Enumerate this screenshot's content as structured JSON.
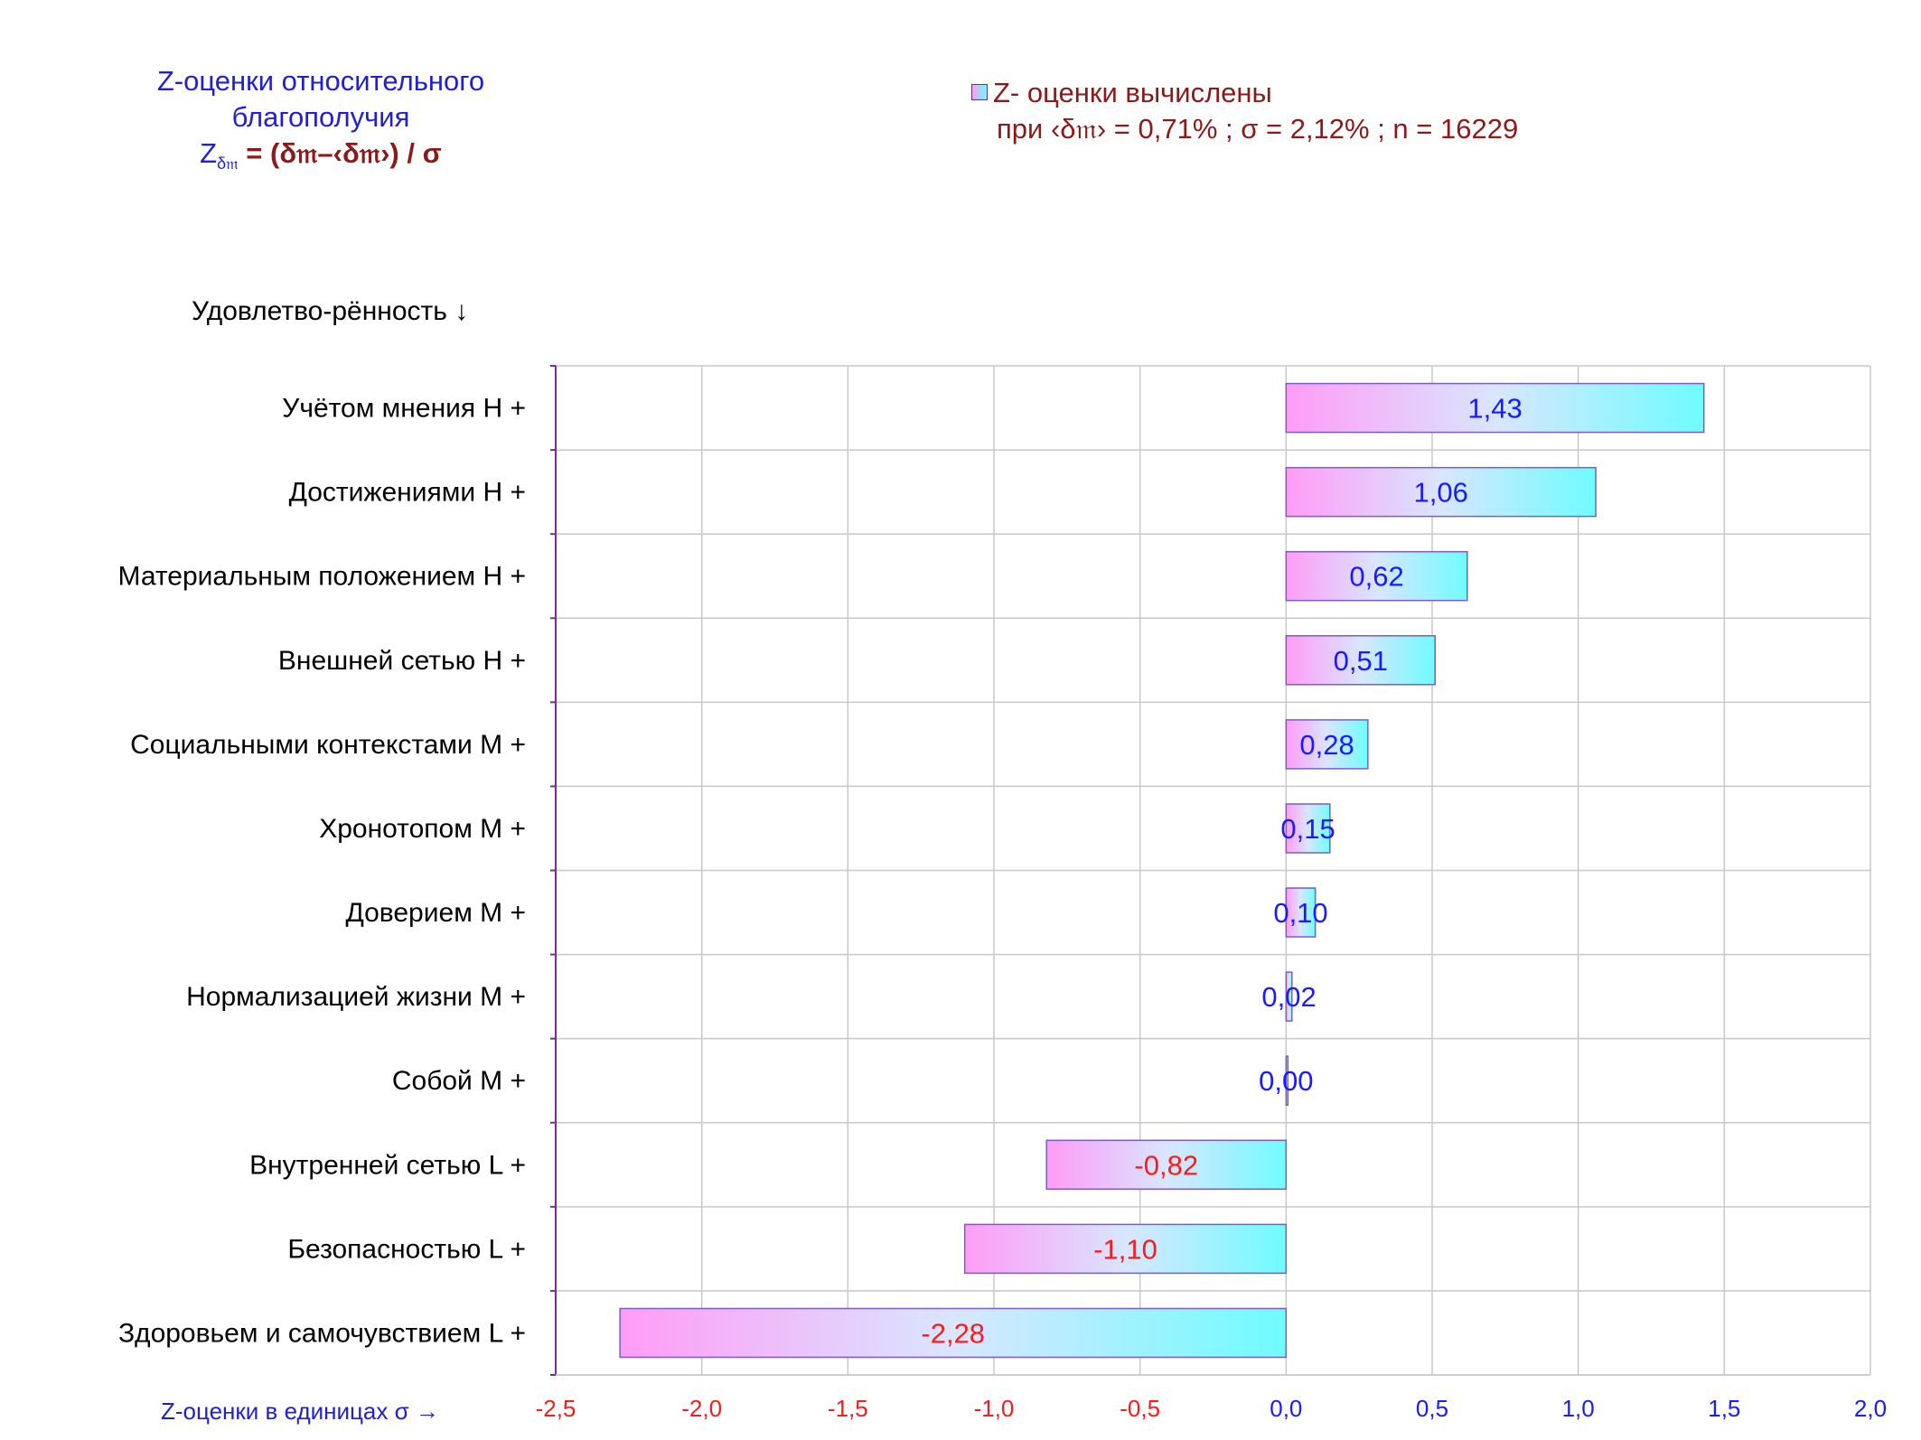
{
  "title": {
    "line1": "Z-оценки  относительного",
    "line2": "благополучия",
    "formula_prefix": "Z",
    "formula_sub": "δ𝔪",
    "formula_body": " = (δ𝔪–‹δ𝔪›)  / σ"
  },
  "legend": {
    "line1": "Z- оценки вычислены",
    "line2": "при ‹δ𝔪› = 0,71% ; σ = 2,12% ; n = 16229"
  },
  "y_category_title": "Удовлетво-рённость ↓",
  "x_axis_title": "Z-оценки в единицах σ →",
  "colors": {
    "bar_left": "#ff9cf6",
    "bar_right": "#6ffcff",
    "bar_border": "#7b5cc9",
    "grid": "#c8c8c8",
    "axis_line": "#7a2a9c",
    "label_positive": "#1a1aff",
    "label_negative": "#ff1a1a",
    "tick_negative": "#ff1a1a",
    "tick_positive": "#1a1aff"
  },
  "chart_data": {
    "type": "bar",
    "orientation": "horizontal",
    "categories": [
      "Учётом мнения  H +",
      "Достижениями  H +",
      "Материальным положением  H +",
      "Внешней сетью  H +",
      "Социальными контекстами  M +",
      "Хронотопом  M +",
      "Доверием  M +",
      "Нормализацией жизни  M +",
      "Собой  M +",
      "Внутренней сетью  L +",
      "Безопасностью  L +",
      "Здоровьем и самочувствием  L +"
    ],
    "values": [
      1.43,
      1.06,
      0.62,
      0.51,
      0.28,
      0.15,
      0.1,
      0.02,
      0.0,
      -0.82,
      -1.1,
      -2.28
    ],
    "data_labels": [
      "1,43",
      "1,06",
      "0,62",
      "0,51",
      "0,28",
      "0,15",
      "0,10",
      "0,02",
      "0,00",
      "-0,82",
      "-1,10",
      "-2,28"
    ],
    "xlim": [
      -2.5,
      2.0
    ],
    "xticks": [
      -2.5,
      -2.0,
      -1.5,
      -1.0,
      -0.5,
      0.0,
      0.5,
      1.0,
      1.5,
      2.0
    ],
    "xtick_labels": [
      "-2,5",
      "-2,0",
      "-1,5",
      "-1,0",
      "-0,5",
      "0,0",
      "0,5",
      "1,0",
      "1,5",
      "2,0"
    ],
    "grid": true,
    "legend_position": "top-right"
  }
}
